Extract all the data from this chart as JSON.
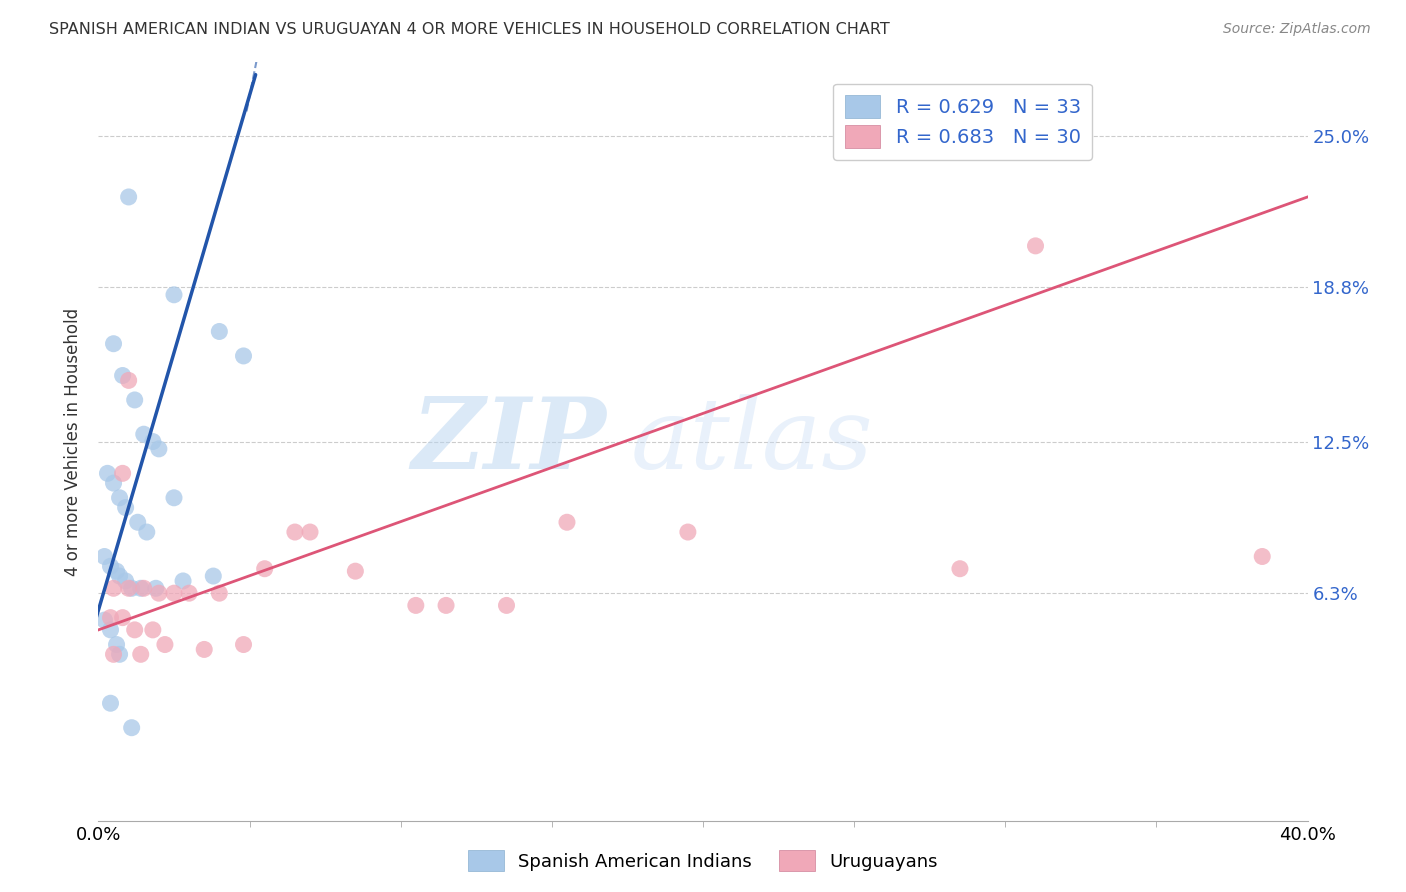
{
  "title": "SPANISH AMERICAN INDIAN VS URUGUAYAN 4 OR MORE VEHICLES IN HOUSEHOLD CORRELATION CHART",
  "source": "Source: ZipAtlas.com",
  "ylabel": "4 or more Vehicles in Household",
  "xlim": [
    0.0,
    40.0
  ],
  "ylim": [
    -3.0,
    28.0
  ],
  "yticks": [
    6.3,
    12.5,
    18.8,
    25.0
  ],
  "ytick_labels": [
    "6.3%",
    "12.5%",
    "18.8%",
    "25.0%"
  ],
  "blue_R": 0.629,
  "blue_N": 33,
  "pink_R": 0.683,
  "pink_N": 30,
  "blue_color": "#a8c8e8",
  "blue_line_color": "#2255aa",
  "pink_color": "#f0a8b8",
  "pink_line_color": "#dd5577",
  "watermark_text": "ZIPatlas",
  "blue_scatter_x": [
    1.0,
    2.5,
    4.0,
    4.8,
    0.5,
    0.8,
    1.2,
    1.5,
    1.8,
    2.0,
    0.3,
    0.5,
    0.7,
    0.9,
    1.3,
    1.6,
    2.5,
    0.2,
    0.4,
    0.6,
    0.7,
    0.9,
    1.1,
    1.4,
    1.9,
    2.8,
    3.8,
    0.2,
    0.4,
    0.6,
    0.7,
    0.4,
    1.1
  ],
  "blue_scatter_y": [
    22.5,
    18.5,
    17.0,
    16.0,
    16.5,
    15.2,
    14.2,
    12.8,
    12.5,
    12.2,
    11.2,
    10.8,
    10.2,
    9.8,
    9.2,
    8.8,
    10.2,
    7.8,
    7.4,
    7.2,
    7.0,
    6.8,
    6.5,
    6.5,
    6.5,
    6.8,
    7.0,
    5.2,
    4.8,
    4.2,
    3.8,
    1.8,
    0.8
  ],
  "pink_scatter_x": [
    0.5,
    1.0,
    1.5,
    2.0,
    2.5,
    3.0,
    4.0,
    5.5,
    6.5,
    7.0,
    8.5,
    10.5,
    11.5,
    13.5,
    15.5,
    19.5,
    28.5,
    38.5,
    0.4,
    0.8,
    1.2,
    1.8,
    2.2,
    4.8,
    3.5,
    0.5,
    1.4,
    1.0,
    0.8,
    31.0
  ],
  "pink_scatter_y": [
    6.5,
    6.5,
    6.5,
    6.3,
    6.3,
    6.3,
    6.3,
    7.3,
    8.8,
    8.8,
    7.2,
    5.8,
    5.8,
    5.8,
    9.2,
    8.8,
    7.3,
    7.8,
    5.3,
    5.3,
    4.8,
    4.8,
    4.2,
    4.2,
    4.0,
    3.8,
    3.8,
    15.0,
    11.2,
    20.5
  ],
  "blue_trendline_x": [
    -0.5,
    5.2
  ],
  "blue_trendline_y": [
    3.5,
    27.5
  ],
  "pink_trendline_x": [
    0.0,
    40.0
  ],
  "pink_trendline_y": [
    4.8,
    22.5
  ]
}
